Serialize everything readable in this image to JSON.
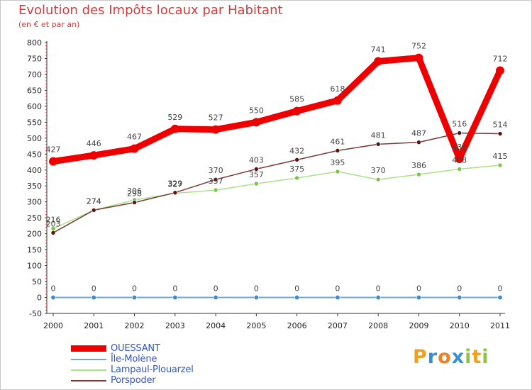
{
  "title": "Evolution des Impôts locaux par Habitant",
  "subtitle": "(en € et par an)",
  "logo": {
    "text": "Proxiti",
    "letters": [
      "P",
      "r",
      "o",
      "x",
      "i",
      "t",
      "i"
    ],
    "colors": [
      "#f0a020",
      "#3a8fd8",
      "#f08020",
      "#3a8fd8",
      "#8cc63f",
      "#f0a020",
      "#8cc63f"
    ]
  },
  "chart_data": {
    "type": "line",
    "title": "Evolution des Impôts locaux par Habitant",
    "subtitle": "(en € et par an)",
    "xlabel": "",
    "ylabel": "",
    "categories": [
      "2000",
      "2001",
      "2002",
      "2003",
      "2004",
      "2005",
      "2006",
      "2007",
      "2008",
      "2009",
      "2010",
      "2011"
    ],
    "ylim": [
      -50,
      800
    ],
    "yticks": [
      -50,
      0,
      50,
      100,
      150,
      200,
      250,
      300,
      350,
      400,
      450,
      500,
      550,
      600,
      650,
      700,
      750,
      800
    ],
    "grid": false,
    "legend_position": "bottom-left",
    "series": [
      {
        "name": "Île-Molène",
        "color": "#6fa8d6",
        "marker": "#3a8ad0",
        "values": [
          0,
          0,
          0,
          0,
          0,
          0,
          0,
          0,
          0,
          0,
          0,
          0
        ],
        "labels": [
          "0",
          "0",
          "0",
          "0",
          "0",
          "0",
          "0",
          "0",
          "0",
          "0",
          "0",
          "0"
        ]
      },
      {
        "name": "Lampaul-Plouarzel",
        "color": "#aee08a",
        "marker": "#7cc44a",
        "values": [
          216,
          274,
          306,
          327,
          337,
          357,
          375,
          395,
          370,
          386,
          403,
          415
        ],
        "labels": [
          "216",
          "274",
          "306",
          "327",
          "337",
          "357",
          "375",
          "395",
          "370",
          "386",
          "403",
          "415"
        ]
      },
      {
        "name": "Porspoder",
        "color": "#7a3a3a",
        "marker": "#5a1414",
        "values": [
          203,
          274,
          298,
          329,
          370,
          403,
          432,
          461,
          481,
          487,
          516,
          514
        ],
        "labels": [
          "203",
          "274",
          "298",
          "329",
          "370",
          "403",
          "432",
          "461",
          "481",
          "487",
          "516",
          "514"
        ]
      },
      {
        "name": "OUESSANT",
        "color": "#ee0000",
        "marker": "#ee0000",
        "values": [
          427,
          446,
          467,
          529,
          527,
          550,
          585,
          618,
          741,
          752,
          435,
          712
        ],
        "labels": [
          "427",
          "446",
          "467",
          "529",
          "527",
          "550",
          "585",
          "618",
          "741",
          "752",
          "435",
          "712"
        ]
      }
    ]
  },
  "legend": [
    {
      "name": "OUESSANT",
      "color": "#ee0000"
    },
    {
      "name": "Île-Molène",
      "color": "#6fa8d6"
    },
    {
      "name": "Lampaul-Plouarzel",
      "color": "#aee08a"
    },
    {
      "name": "Porspoder",
      "color": "#7a3a3a"
    }
  ]
}
